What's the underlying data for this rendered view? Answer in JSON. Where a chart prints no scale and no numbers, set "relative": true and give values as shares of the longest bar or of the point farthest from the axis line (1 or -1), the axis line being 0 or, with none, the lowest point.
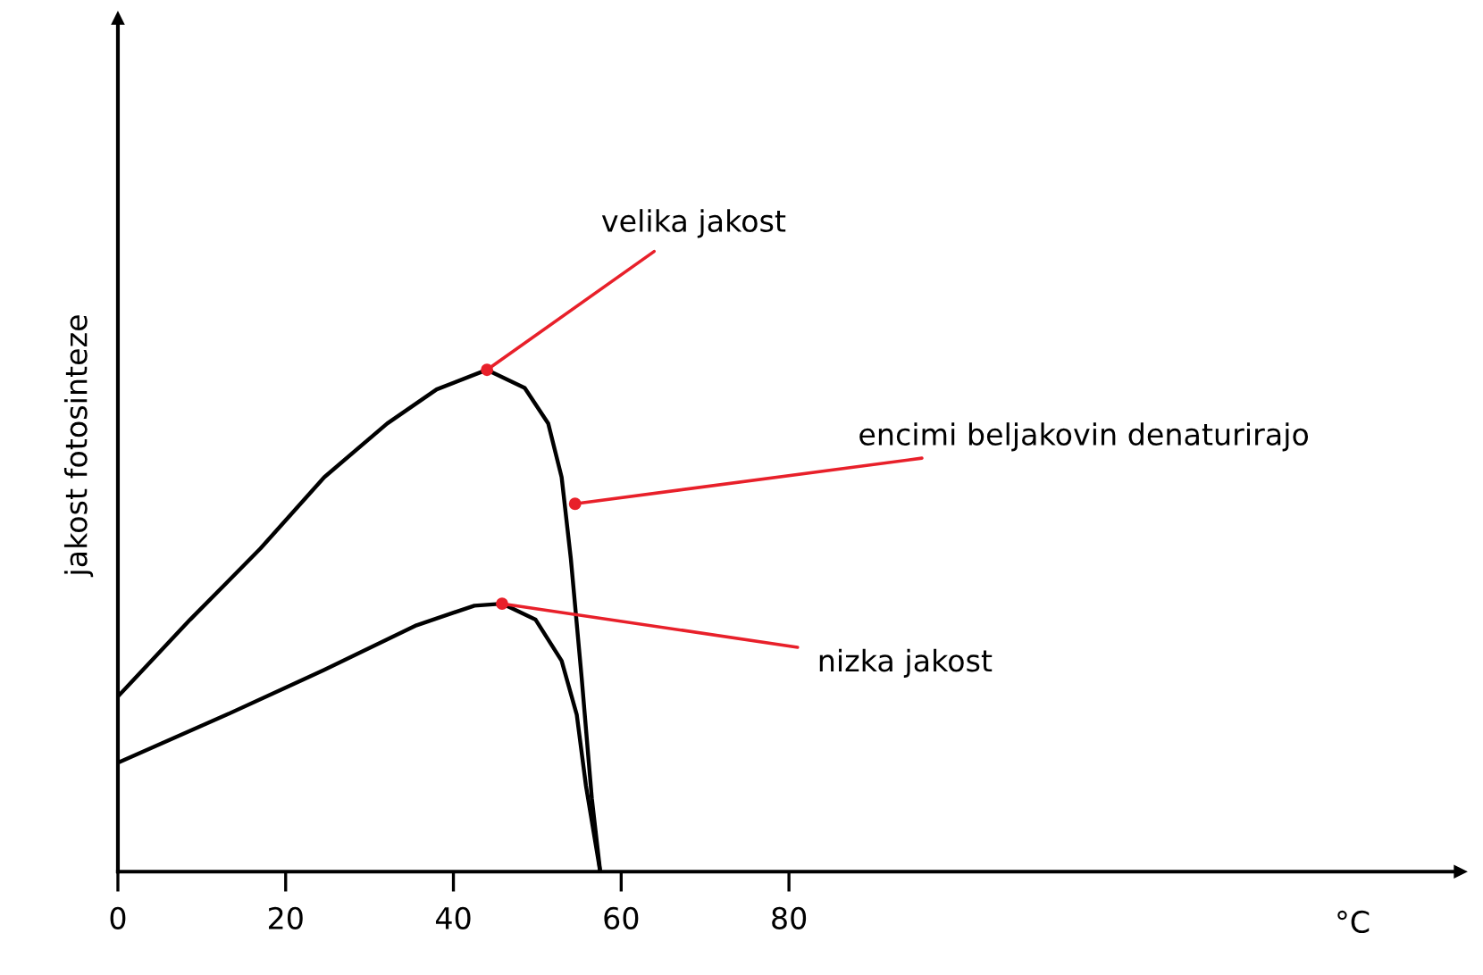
{
  "chart_data": {
    "type": "line",
    "relative": true,
    "ylabel": "jakost fotosinteze",
    "xlabel": "°C",
    "xlim": [
      0,
      160
    ],
    "xticks": [
      0,
      20,
      40,
      60,
      80
    ],
    "grid": false,
    "legend": false,
    "marker": "none",
    "line_style": "solid",
    "tick_labels": "x",
    "series": [
      {
        "color": "#000000",
        "x": [
          0,
          8.6,
          17,
          24.6,
          32.1,
          38,
          44,
          48.5,
          51.3,
          52.9,
          54,
          55.3,
          56.5,
          57.5
        ],
        "values": [
          0.349,
          0.502,
          0.644,
          0.786,
          0.893,
          0.961,
          1,
          0.964,
          0.893,
          0.786,
          0.623,
          0.384,
          0.146,
          0
        ]
      },
      {
        "color": "#000000",
        "x": [
          0,
          13,
          24.6,
          35.6,
          42.5,
          45.8,
          49.8,
          52.9,
          54.7,
          55.8,
          57.5
        ],
        "values": [
          0.217,
          0.313,
          0.402,
          0.491,
          0.53,
          0.534,
          0.502,
          0.42,
          0.313,
          0.171,
          0
        ]
      }
    ],
    "annotations": [
      {
        "text": "velika jakost",
        "x": 44,
        "y": 1
      },
      {
        "text": "encimi beljakovin denaturirajo",
        "x": 54.5,
        "y": 0.733
      },
      {
        "text": "nizka jakost",
        "x": 45.8,
        "y": 0.534
      }
    ]
  }
}
